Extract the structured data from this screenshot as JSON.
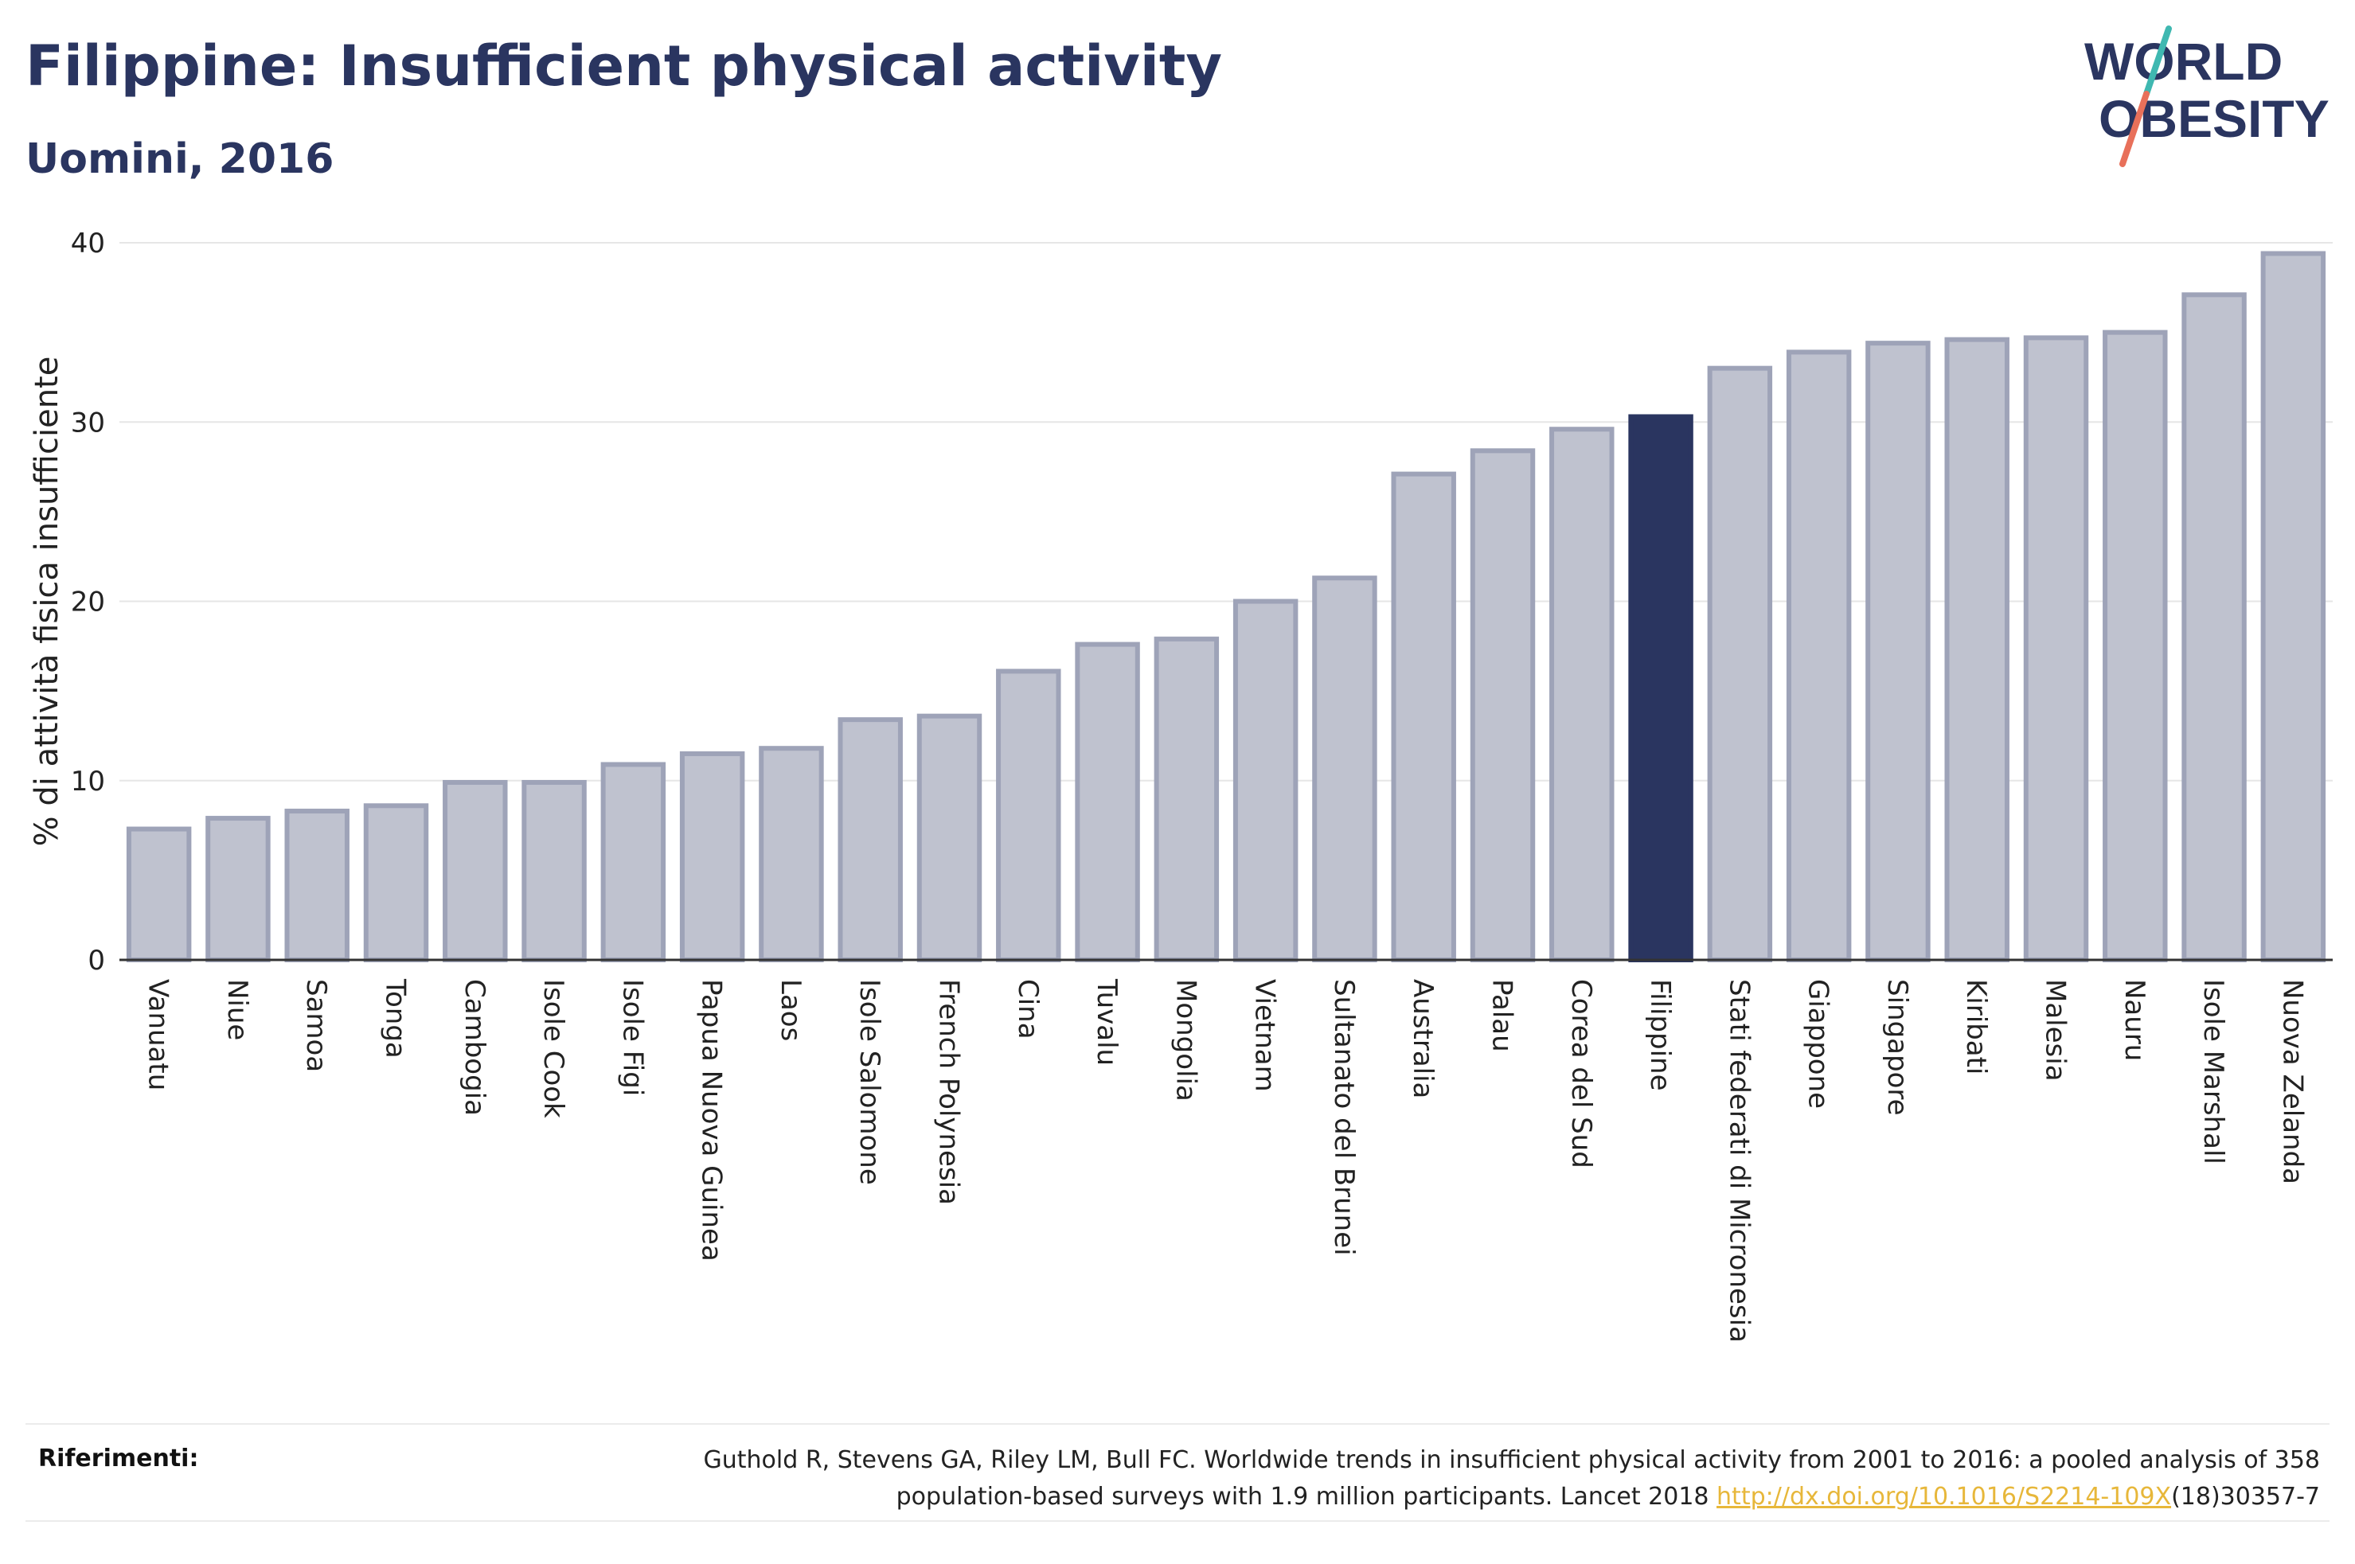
{
  "header": {
    "title": "Filippine: Insufficient physical activity",
    "subtitle": "Uomini, 2016"
  },
  "logo": {
    "line1": "WORLD",
    "line2": "OBESITY",
    "colors": {
      "text": "#2a3560",
      "accent_teal": "#3fb8b1",
      "accent_coral": "#e8705a"
    }
  },
  "colors": {
    "bar": "#bfc2cf",
    "bar_border": "#9ea3b8",
    "highlight": "#2a3560",
    "grid": "#e6e6e6",
    "axis": "#333333"
  },
  "chart_data": {
    "type": "bar",
    "ylabel": "% di attività fisica insufficiente",
    "ylim": [
      0,
      40
    ],
    "yticks": [
      0,
      10,
      20,
      30,
      40
    ],
    "grid": true,
    "highlight": "Filippine",
    "categories": [
      "Vanuatu",
      "Niue",
      "Samoa",
      "Tonga",
      "Cambogia",
      "Isole Cook",
      "Isole Figi",
      "Papua Nuova Guinea",
      "Laos",
      "Isole Salomone",
      "French Polynesia",
      "Cina",
      "Tuvalu",
      "Mongolia",
      "Vietnam",
      "Sultanato del Brunei",
      "Australia",
      "Palau",
      "Corea del Sud",
      "Filippine",
      "Stati federati di Micronesia",
      "Giappone",
      "Singapore",
      "Kiribati",
      "Malesia",
      "Nauru",
      "Isole Marshall",
      "Nuova Zelanda"
    ],
    "values": [
      7.3,
      7.9,
      8.3,
      8.6,
      9.9,
      9.9,
      10.9,
      11.5,
      11.8,
      13.4,
      13.6,
      16.1,
      17.6,
      17.9,
      20.0,
      21.3,
      27.1,
      28.4,
      29.6,
      30.3,
      33.0,
      33.9,
      34.4,
      34.6,
      34.7,
      35.0,
      37.1,
      39.4
    ]
  },
  "references": {
    "label": "Riferimenti:",
    "text_line1": "Guthold R, Stevens GA, Riley LM, Bull FC. Worldwide trends in insufficient physical activity from 2001 to 2016: a pooled analysis of 358",
    "text_line2_pre": "population-based surveys with 1.9 million participants. Lancet 2018 ",
    "link_text": "http://dx.doi.org/10.1016/S2214-109X",
    "text_line2_post": "(18)30357-7"
  }
}
